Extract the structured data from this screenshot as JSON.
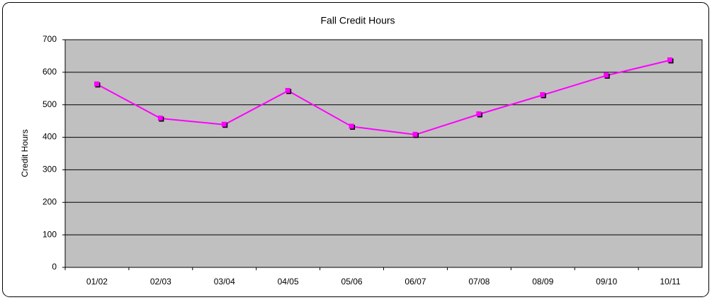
{
  "chart_data": {
    "type": "line",
    "title": "Fall Credit Hours",
    "y_label": "Credit Hours",
    "categories": [
      "01/02",
      "02/03",
      "03/04",
      "04/05",
      "05/06",
      "06/07",
      "07/08",
      "08/09",
      "09/10",
      "10/11"
    ],
    "series": [
      {
        "name": "Credit Hours",
        "color": "#ff00ff",
        "values": [
          563,
          458,
          439,
          543,
          433,
          408,
          471,
          530,
          590,
          637
        ]
      }
    ],
    "ylim": [
      0,
      700
    ],
    "yticks": [
      0,
      100,
      200,
      300,
      400,
      500,
      600,
      700
    ],
    "grid": true
  }
}
